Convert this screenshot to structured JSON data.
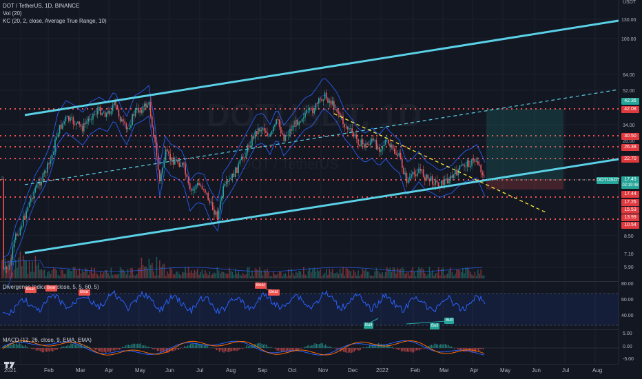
{
  "symbol_line": "DOT / TetherUS, 1D, BINANCE",
  "indicators": {
    "vol": "Vol (20)",
    "kc": "KC (20, 2, close, Average True Range, 10)",
    "divergence": "Divergence Indicator (close, 5, 5, 60, 5)",
    "macd": "MACD (12, 26, close, 9, EMA, EMA)"
  },
  "watermark": {
    "symbol": "DOTUSDT, 1D",
    "name": "DOT / TetherUS"
  },
  "price_axis": {
    "unit_top": "USDT",
    "ticks": [
      "130.00",
      "100.00",
      "64.00",
      "52.00",
      "34.00",
      "28.00",
      "22.70",
      "8.50",
      "7.10",
      "5.90"
    ]
  },
  "level_tags": [
    {
      "label": "42.36",
      "color": "green"
    },
    {
      "label": "42.08",
      "color": "red"
    },
    {
      "label": "30.50",
      "color": "red"
    },
    {
      "label": "26.38",
      "color": "red"
    },
    {
      "label": "22.70",
      "color": "red"
    },
    {
      "label": "17.44",
      "color": "red"
    },
    {
      "label": "17.26",
      "color": "red"
    },
    {
      "label": "15.53",
      "color": "red"
    },
    {
      "label": "13.99",
      "color": "red"
    },
    {
      "label": "10.54",
      "color": "red"
    }
  ],
  "current_price": {
    "symbol": "DOTUSDT",
    "price": "17.49",
    "countdown": "02:19:48"
  },
  "oscillator_axis": [
    "80.00",
    "60.00",
    "40.00"
  ],
  "macd_axis": [
    "5.00",
    "0.00",
    "-5.00"
  ],
  "divergence_badges": [
    {
      "text": "Bear",
      "type": "bear"
    },
    {
      "text": "Bear",
      "type": "bear"
    },
    {
      "text": "Bear",
      "type": "bear"
    },
    {
      "text": "Bear",
      "type": "bear"
    },
    {
      "text": "Bear",
      "type": "bear"
    },
    {
      "text": "Bull",
      "type": "bull"
    },
    {
      "text": "Bull",
      "type": "bull"
    },
    {
      "text": "Bull",
      "type": "bull"
    }
  ],
  "time_axis": [
    "2021",
    "Feb",
    "Mar",
    "Apr",
    "May",
    "Jun",
    "Jul",
    "Aug",
    "Sep",
    "Oct",
    "Nov",
    "Dec",
    "2022",
    "Feb",
    "Mar",
    "Apr",
    "May",
    "Jun",
    "Jul",
    "Aug"
  ],
  "colors": {
    "background": "#131722",
    "up": "#26a69a",
    "down": "#ef5350",
    "channel": "#5ad1e6",
    "level": "#ef5350",
    "keltner": "#2962ff",
    "trend_dashed": "#ffeb3b"
  }
}
